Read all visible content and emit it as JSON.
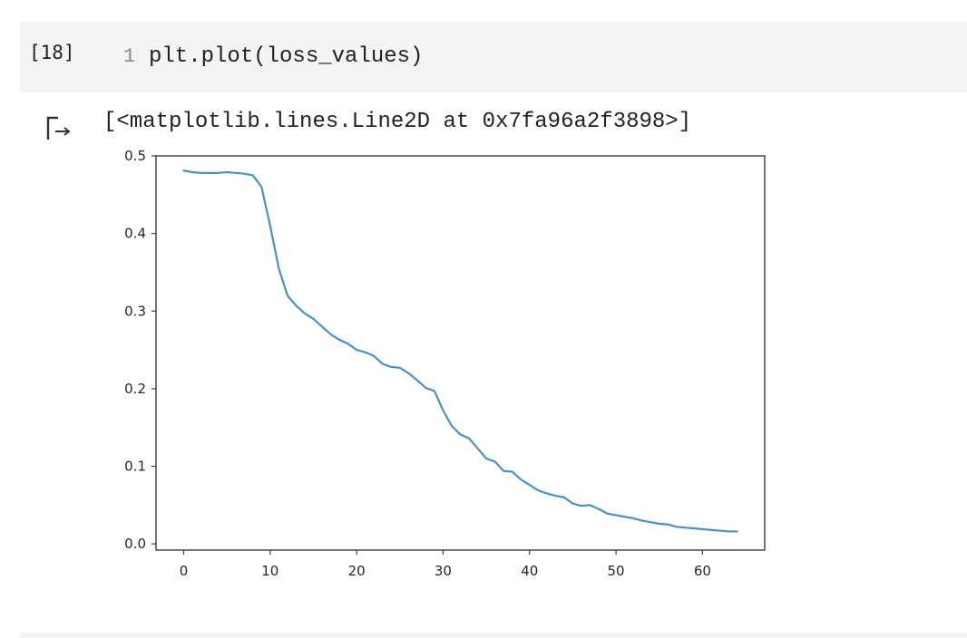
{
  "cell": {
    "execution_count": "[18]",
    "line_number": "1",
    "code": "plt.plot(loss_values)"
  },
  "output": {
    "icon": "output-arrow-icon",
    "text": "[<matplotlib.lines.Line2D at 0x7fa96a2f3898>]"
  },
  "chart_data": {
    "type": "line",
    "title": "",
    "xlabel": "",
    "ylabel": "",
    "xlim": [
      -3.2,
      67.2
    ],
    "ylim": [
      -0.008,
      0.5
    ],
    "grid": false,
    "x_ticks": [
      "0",
      "10",
      "20",
      "30",
      "40",
      "50",
      "60"
    ],
    "y_ticks": [
      "0.0",
      "0.1",
      "0.2",
      "0.3",
      "0.4",
      "0.5"
    ],
    "line_color": "#4a90c8",
    "series": [
      {
        "values": [
          0.481,
          0.479,
          0.478,
          0.478,
          0.478,
          0.479,
          0.478,
          0.477,
          0.475,
          0.46,
          0.41,
          0.355,
          0.32,
          0.307,
          0.297,
          0.29,
          0.28,
          0.27,
          0.263,
          0.258,
          0.25,
          0.247,
          0.242,
          0.232,
          0.228,
          0.227,
          0.22,
          0.211,
          0.201,
          0.197,
          0.172,
          0.152,
          0.141,
          0.136,
          0.123,
          0.11,
          0.106,
          0.094,
          0.093,
          0.083,
          0.076,
          0.069,
          0.065,
          0.062,
          0.06,
          0.052,
          0.049,
          0.05,
          0.045,
          0.039,
          0.037,
          0.035,
          0.033,
          0.03,
          0.028,
          0.026,
          0.025,
          0.022,
          0.021,
          0.02,
          0.019,
          0.018,
          0.017,
          0.016,
          0.016
        ]
      }
    ]
  }
}
